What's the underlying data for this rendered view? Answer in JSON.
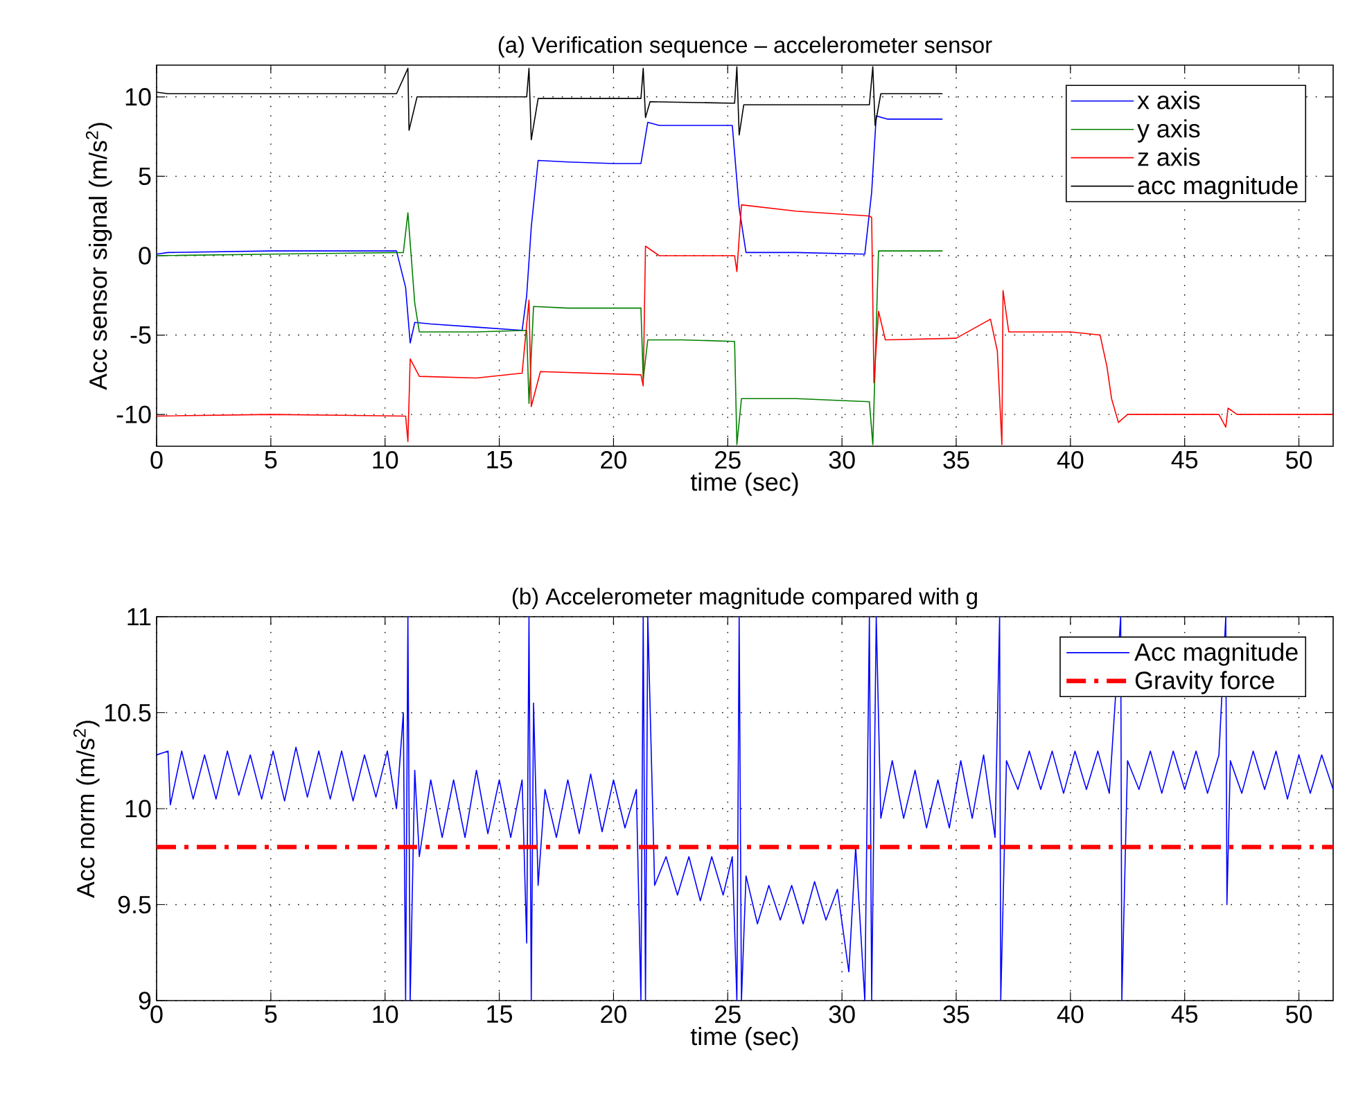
{
  "chart_data": [
    {
      "type": "line",
      "title": "(a) Verification sequence – accelerometer sensor",
      "xlabel": "time (sec)",
      "ylabel": "Acc sensor signal (m/s$^{2}$)",
      "xlim": [
        0,
        51.5
      ],
      "ylim": [
        -12,
        12
      ],
      "xticks": [
        0,
        5,
        10,
        15,
        20,
        25,
        30,
        35,
        40,
        45,
        50
      ],
      "yticks": [
        -10,
        -5,
        0,
        5,
        10
      ],
      "grid": true,
      "legend": "top right",
      "line_style": "solid",
      "series": [
        {
          "name": "x axis",
          "color": "#0000ff",
          "x": [
            0,
            0.5,
            5,
            10.5,
            10.9,
            11.1,
            11.3,
            12,
            14,
            16,
            16.2,
            16.4,
            16.7,
            18,
            20,
            21.2,
            21.5,
            22,
            25.2,
            25.5,
            25.8,
            28,
            31,
            31.3,
            31.5,
            32,
            34.4
          ],
          "values": [
            0.1,
            0.2,
            0.3,
            0.3,
            -2,
            -5.5,
            -4.2,
            -4.3,
            -4.5,
            -4.7,
            -2.5,
            1.8,
            6.0,
            5.9,
            5.8,
            5.8,
            8.4,
            8.2,
            8.2,
            3,
            0.2,
            0.2,
            0.1,
            4,
            8.8,
            8.6,
            8.6
          ]
        },
        {
          "name": "y axis",
          "color": "#008000",
          "x": [
            0,
            5,
            10.8,
            11.0,
            11.3,
            11.5,
            14,
            16.2,
            16.3,
            16.5,
            18,
            21.2,
            21.3,
            21.5,
            23,
            25.3,
            25.4,
            25.6,
            28,
            31.2,
            31.35,
            31.6,
            34.4
          ],
          "values": [
            0,
            0.1,
            0.2,
            2.7,
            -3,
            -4.8,
            -4.8,
            -4.7,
            -9.3,
            -3.2,
            -3.3,
            -3.3,
            -7.8,
            -5.3,
            -5.3,
            -5.4,
            -11.9,
            -9.0,
            -9.0,
            -9.2,
            -11.9,
            0.3,
            0.3
          ]
        },
        {
          "name": "z axis",
          "color": "#ff0000",
          "x": [
            0,
            5,
            10.9,
            11.0,
            11.1,
            11.5,
            14,
            16,
            16.3,
            16.4,
            16.8,
            21.2,
            21.3,
            21.4,
            22,
            25.3,
            25.4,
            25.6,
            28,
            31.2,
            31.3,
            31.4,
            31.6,
            31.9,
            35,
            36.5,
            36.8,
            37.0,
            37.05,
            37.3,
            40,
            41.3,
            41.6,
            41.8,
            42.1,
            42.5,
            46.5,
            46.8,
            46.9,
            47.3,
            51.5
          ],
          "values": [
            -10.1,
            -10.0,
            -10.1,
            -11.7,
            -6.5,
            -7.6,
            -7.7,
            -7.4,
            -2.8,
            -9.5,
            -7.3,
            -7.5,
            -8.2,
            0.6,
            0.0,
            0.0,
            -1,
            3.2,
            2.8,
            2.5,
            2.4,
            -8,
            -3.5,
            -5.3,
            -5.2,
            -4,
            -6,
            -11.9,
            -2.2,
            -4.8,
            -4.8,
            -5.0,
            -7,
            -9,
            -10.5,
            -10.0,
            -10.0,
            -10.8,
            -9.6,
            -10.0,
            -10.0
          ]
        },
        {
          "name": "acc magnitude",
          "color": "#000000",
          "x": [
            0,
            0.5,
            10.5,
            11.0,
            11.05,
            11.4,
            16.2,
            16.3,
            16.4,
            16.7,
            21.2,
            21.3,
            21.4,
            21.6,
            25.3,
            25.4,
            25.5,
            25.7,
            31.2,
            31.35,
            31.45,
            31.7,
            34.4
          ],
          "values": [
            10.3,
            10.2,
            10.2,
            11.8,
            7.9,
            10.0,
            10.0,
            11.8,
            7.3,
            9.9,
            9.9,
            11.8,
            8.7,
            9.7,
            9.6,
            11.9,
            7.6,
            9.5,
            9.5,
            11.9,
            8.2,
            10.2,
            10.2
          ]
        }
      ]
    },
    {
      "type": "line",
      "title": "(b) Accelerometer magnitude compared with g",
      "xlabel": "time (sec)",
      "ylabel": "Acc norm (m/s$^{2}$)",
      "xlim": [
        0,
        51.5
      ],
      "ylim": [
        9,
        11
      ],
      "xticks": [
        0,
        5,
        10,
        15,
        20,
        25,
        30,
        35,
        40,
        45,
        50
      ],
      "yticks": [
        9,
        9.5,
        10,
        10.5,
        11
      ],
      "grid": true,
      "legend": "top right",
      "series": [
        {
          "name": "Acc magnitude",
          "color": "#0000ff",
          "line_style": "solid",
          "x": [
            0,
            0.5,
            0.6,
            1.1,
            1.6,
            2.1,
            2.6,
            3.1,
            3.6,
            4.1,
            4.6,
            5.1,
            5.6,
            6.1,
            6.6,
            7.1,
            7.6,
            8.1,
            8.6,
            9.1,
            9.6,
            10.1,
            10.5,
            10.8,
            10.9,
            11.0,
            11.1,
            11.3,
            11.5,
            12.0,
            12.5,
            13.0,
            13.5,
            14.0,
            14.5,
            15.0,
            15.5,
            16.0,
            16.2,
            16.3,
            16.4,
            16.5,
            16.7,
            17.0,
            17.5,
            18.0,
            18.5,
            19.0,
            19.5,
            20.0,
            20.5,
            21.0,
            21.2,
            21.3,
            21.4,
            21.5,
            21.8,
            22.3,
            22.8,
            23.3,
            23.8,
            24.3,
            24.8,
            25.2,
            25.4,
            25.5,
            25.6,
            25.8,
            26.3,
            26.8,
            27.3,
            27.8,
            28.3,
            28.8,
            29.3,
            29.8,
            30.3,
            30.6,
            31.0,
            31.2,
            31.3,
            31.5,
            31.7,
            32.2,
            32.7,
            33.2,
            33.7,
            34.2,
            34.7,
            35.2,
            35.7,
            36.2,
            36.7,
            36.9,
            36.95,
            37.2,
            37.7,
            38.2,
            38.7,
            39.2,
            39.7,
            40.2,
            40.7,
            41.2,
            41.7,
            42.2,
            42.25,
            42.5,
            43.0,
            43.5,
            44.0,
            44.5,
            45.0,
            45.5,
            46.0,
            46.5,
            46.8,
            46.85,
            47.0,
            47.5,
            48.0,
            48.5,
            49.0,
            49.5,
            50.0,
            50.5,
            51.0,
            51.5
          ],
          "values": [
            10.28,
            10.3,
            10.02,
            10.3,
            10.05,
            10.28,
            10.05,
            10.3,
            10.07,
            10.28,
            10.05,
            10.3,
            10.04,
            10.32,
            10.06,
            10.3,
            10.05,
            10.3,
            10.04,
            10.28,
            10.06,
            10.3,
            10.0,
            10.5,
            9.0,
            11.0,
            9.0,
            10.2,
            9.75,
            10.15,
            9.85,
            10.15,
            9.85,
            10.2,
            9.87,
            10.15,
            9.85,
            10.15,
            9.3,
            11.0,
            9.0,
            10.55,
            9.6,
            10.1,
            9.85,
            10.15,
            9.87,
            10.18,
            9.88,
            10.15,
            9.9,
            10.1,
            9.0,
            11.0,
            9.0,
            11.0,
            9.6,
            9.75,
            9.55,
            9.75,
            9.52,
            9.75,
            9.55,
            9.75,
            9.0,
            11.0,
            9.0,
            9.65,
            9.4,
            9.6,
            9.42,
            9.6,
            9.4,
            9.62,
            9.42,
            9.58,
            9.15,
            9.8,
            9.0,
            11.0,
            9.0,
            11.0,
            9.95,
            10.25,
            9.95,
            10.2,
            9.9,
            10.15,
            9.9,
            10.25,
            9.95,
            10.28,
            9.85,
            11.0,
            9.0,
            10.25,
            10.1,
            10.3,
            10.1,
            10.3,
            10.08,
            10.3,
            10.1,
            10.3,
            10.08,
            11.0,
            9.0,
            10.25,
            10.1,
            10.3,
            10.08,
            10.3,
            10.1,
            10.3,
            10.08,
            10.28,
            11.0,
            9.5,
            10.25,
            10.08,
            10.3,
            10.1,
            10.3,
            10.05,
            10.28,
            10.08,
            10.28,
            10.1
          ]
        },
        {
          "name": "Gravity force",
          "color": "#ff0000",
          "line_style": "dashed",
          "x": [
            0,
            51.5
          ],
          "values": [
            9.8,
            9.8
          ]
        }
      ]
    }
  ]
}
